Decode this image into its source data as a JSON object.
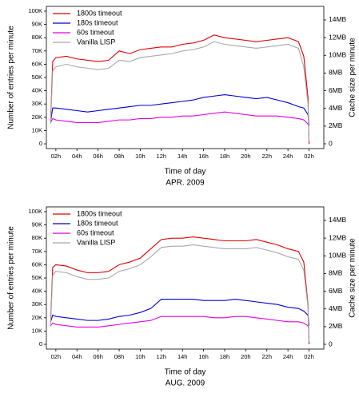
{
  "chart_data": [
    {
      "type": "line",
      "caption": "APR. 2009",
      "xlabel": "Time of day",
      "ylabel": "Number of entries per minute",
      "y2label": "Cache size per minute",
      "x": [
        1.5,
        1.7,
        2,
        3,
        4,
        5,
        6,
        7,
        8,
        9,
        10,
        11,
        12,
        13,
        14,
        15,
        16,
        17,
        18,
        19,
        20,
        21,
        22,
        23,
        24,
        25,
        25.5,
        25.9,
        26
      ],
      "series": [
        {
          "name": "1800s timeout",
          "color": "#e00000",
          "values": [
            17000,
            62000,
            65000,
            66000,
            64000,
            63000,
            62000,
            63000,
            70000,
            68000,
            71000,
            72000,
            73000,
            73000,
            75000,
            76000,
            78000,
            82000,
            80000,
            79000,
            78000,
            77000,
            78000,
            79000,
            80000,
            77000,
            66000,
            35000,
            0
          ]
        },
        {
          "name": "180s timeout",
          "color": "#0000d0",
          "values": [
            17000,
            27000,
            27000,
            26000,
            25000,
            24000,
            25000,
            26000,
            27000,
            28000,
            29000,
            29000,
            30000,
            31000,
            32000,
            33000,
            35000,
            36000,
            37000,
            36000,
            35000,
            34000,
            35000,
            33000,
            31000,
            28000,
            27000,
            22000,
            14000
          ]
        },
        {
          "name": "60s timeout",
          "color": "#e000e0",
          "values": [
            16000,
            19000,
            18000,
            17000,
            16000,
            16000,
            16000,
            17000,
            18000,
            18000,
            19000,
            19000,
            20000,
            20000,
            21000,
            21000,
            22000,
            23000,
            24000,
            23000,
            22000,
            21000,
            21000,
            21000,
            20000,
            19000,
            18000,
            15000,
            13000
          ]
        },
        {
          "name": "Vanilla LISP",
          "color": "#a8a8a8",
          "values": [
            15000,
            55000,
            58000,
            60000,
            58000,
            57000,
            56000,
            57000,
            63000,
            62000,
            65000,
            66000,
            67000,
            68000,
            70000,
            71000,
            73000,
            77000,
            75000,
            74000,
            73000,
            72000,
            73000,
            74000,
            75000,
            72000,
            58000,
            30000,
            2000
          ]
        }
      ],
      "xlim": [
        1.1,
        27.4
      ],
      "xticks": [
        {
          "value": 2,
          "label": "02h"
        },
        {
          "value": 4,
          "label": "04h"
        },
        {
          "value": 6,
          "label": "06h"
        },
        {
          "value": 8,
          "label": "08h"
        },
        {
          "value": 10,
          "label": "10h"
        },
        {
          "value": 12,
          "label": "12h"
        },
        {
          "value": 14,
          "label": "14h"
        },
        {
          "value": 16,
          "label": "16h"
        },
        {
          "value": 18,
          "label": "18h"
        },
        {
          "value": 20,
          "label": "20h"
        },
        {
          "value": 22,
          "label": "22h"
        },
        {
          "value": 24,
          "label": "24h"
        },
        {
          "value": 26,
          "label": "02h"
        }
      ],
      "ylim": [
        -3600,
        103600
      ],
      "yticks": [
        0,
        {
          "value": 10000,
          "label": "10K"
        },
        {
          "value": 20000,
          "label": "20K"
        },
        {
          "value": 30000,
          "label": "30K"
        },
        {
          "value": 40000,
          "label": "40K"
        },
        {
          "value": 50000,
          "label": "50K"
        },
        {
          "value": 60000,
          "label": "60K"
        },
        {
          "value": 70000,
          "label": "70K"
        },
        {
          "value": 80000,
          "label": "80K"
        },
        {
          "value": 90000,
          "label": "90K"
        },
        {
          "value": 100000,
          "label": "100K"
        }
      ],
      "y2lim": [
        -0.54,
        15.53
      ],
      "y2ticks": [
        0,
        {
          "value": 2,
          "label": "2MB"
        },
        {
          "value": 4,
          "label": "4MB"
        },
        {
          "value": 6,
          "label": "6MB"
        },
        {
          "value": 8,
          "label": "8MB"
        },
        {
          "value": 10,
          "label": "10MB"
        },
        {
          "value": 12,
          "label": "12MB"
        },
        {
          "value": 14,
          "label": "14MB"
        }
      ],
      "legend": "upper left"
    },
    {
      "type": "line",
      "caption": "AUG. 2009",
      "xlabel": "Time of day",
      "ylabel": "Number of entries per minute",
      "y2label": "Cache size per minute",
      "x": [
        1.5,
        1.7,
        2,
        3,
        4,
        5,
        6,
        7,
        8,
        9,
        10,
        11,
        12,
        13,
        14,
        15,
        16,
        17,
        18,
        19,
        20,
        21,
        22,
        23,
        24,
        25,
        25.5,
        25.9,
        26
      ],
      "series": [
        {
          "name": "1800s timeout",
          "color": "#e00000",
          "values": [
            17000,
            58000,
            60000,
            59000,
            56000,
            54000,
            54000,
            55000,
            60000,
            62000,
            65000,
            72000,
            79000,
            80000,
            80000,
            81000,
            80000,
            79000,
            78000,
            78000,
            78000,
            79000,
            77000,
            75000,
            72000,
            70000,
            62000,
            30000,
            0
          ]
        },
        {
          "name": "180s timeout",
          "color": "#0000d0",
          "values": [
            17000,
            22000,
            21000,
            20000,
            19000,
            18000,
            18000,
            19000,
            21000,
            22000,
            24000,
            27000,
            34000,
            34000,
            34000,
            34000,
            33000,
            33000,
            33000,
            34000,
            33000,
            32000,
            31000,
            30000,
            28000,
            27000,
            25000,
            22000,
            14000
          ]
        },
        {
          "name": "60s timeout",
          "color": "#e000e0",
          "values": [
            14000,
            16000,
            15000,
            14000,
            13000,
            13000,
            13000,
            14000,
            15000,
            16000,
            17000,
            18000,
            21000,
            21000,
            21000,
            21000,
            21000,
            20000,
            20000,
            21000,
            21000,
            20000,
            19000,
            18000,
            17000,
            17000,
            16000,
            14000,
            10000
          ]
        },
        {
          "name": "Vanilla LISP",
          "color": "#a8a8a8",
          "values": [
            15000,
            52000,
            55000,
            54000,
            51000,
            49000,
            49000,
            50000,
            55000,
            57000,
            60000,
            66000,
            73000,
            74000,
            74000,
            75000,
            74000,
            73000,
            72000,
            72000,
            72000,
            73000,
            71000,
            69000,
            66000,
            64000,
            56000,
            28000,
            2000
          ]
        }
      ],
      "xlim": [
        1.1,
        27.4
      ],
      "xticks": [
        {
          "value": 2,
          "label": "02h"
        },
        {
          "value": 4,
          "label": "04h"
        },
        {
          "value": 6,
          "label": "06h"
        },
        {
          "value": 8,
          "label": "08h"
        },
        {
          "value": 10,
          "label": "10h"
        },
        {
          "value": 12,
          "label": "12h"
        },
        {
          "value": 14,
          "label": "14h"
        },
        {
          "value": 16,
          "label": "16h"
        },
        {
          "value": 18,
          "label": "18h"
        },
        {
          "value": 20,
          "label": "20h"
        },
        {
          "value": 22,
          "label": "22h"
        },
        {
          "value": 24,
          "label": "24h"
        },
        {
          "value": 26,
          "label": "02h"
        }
      ],
      "ylim": [
        -3600,
        103600
      ],
      "yticks": [
        0,
        {
          "value": 10000,
          "label": "10K"
        },
        {
          "value": 20000,
          "label": "20K"
        },
        {
          "value": 30000,
          "label": "30K"
        },
        {
          "value": 40000,
          "label": "40K"
        },
        {
          "value": 50000,
          "label": "50K"
        },
        {
          "value": 60000,
          "label": "60K"
        },
        {
          "value": 70000,
          "label": "70K"
        },
        {
          "value": 80000,
          "label": "80K"
        },
        {
          "value": 90000,
          "label": "90K"
        },
        {
          "value": 100000,
          "label": "100K"
        }
      ],
      "y2lim": [
        -0.54,
        15.53
      ],
      "y2ticks": [
        0,
        {
          "value": 2,
          "label": "2MB"
        },
        {
          "value": 4,
          "label": "4MB"
        },
        {
          "value": 6,
          "label": "6MB"
        },
        {
          "value": 8,
          "label": "8MB"
        },
        {
          "value": 10,
          "label": "10MB"
        },
        {
          "value": 12,
          "label": "12MB"
        },
        {
          "value": 14,
          "label": "14MB"
        }
      ],
      "legend": "upper left"
    }
  ]
}
